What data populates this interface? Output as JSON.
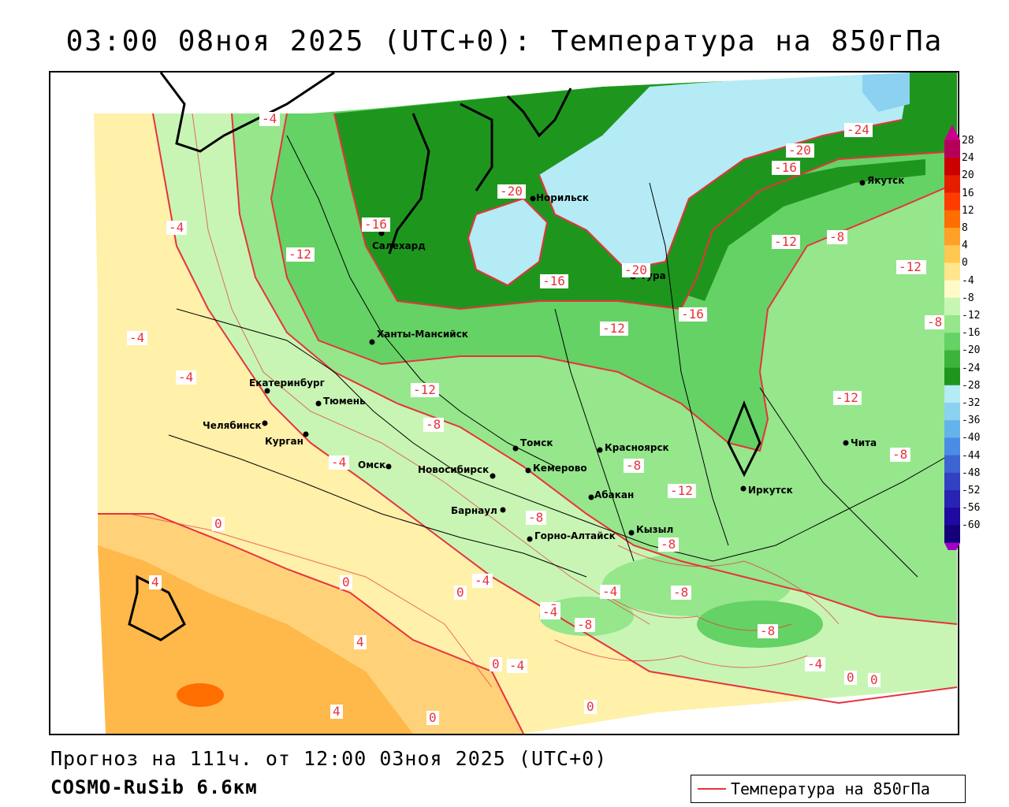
{
  "title": "03:00 08ноя 2025 (UTC+0): Температура на 850гПа",
  "footer": {
    "forecast": "Прогноз на 111ч. от 12:00 03ноя 2025 (UTC+0)",
    "model": "COSMO-RuSib 6.6км"
  },
  "legend": {
    "label": "Температура на 850гПа",
    "color": "#e8323c"
  },
  "colors": {
    "isoline": "#e8323c",
    "border": "#000000",
    "label_bg": "#ffffff"
  },
  "colorbar": {
    "ticks": [
      "28",
      "24",
      "20",
      "16",
      "12",
      "8",
      "4",
      "0",
      "-4",
      "-8",
      "-12",
      "-16",
      "-20",
      "-24",
      "-28",
      "-32",
      "-36",
      "-40",
      "-44",
      "-48",
      "-52",
      "-56",
      "-60"
    ],
    "colors": [
      "#b4005a",
      "#cd0000",
      "#e61e00",
      "#ff3c00",
      "#ff6e00",
      "#ffa028",
      "#ffc850",
      "#ffe68c",
      "#fffac8",
      "#c8f5b4",
      "#96e68c",
      "#64d264",
      "#3cb43c",
      "#1e961e",
      "#b4ebf5",
      "#8cd2f0",
      "#64b4eb",
      "#4b8ce6",
      "#3c64d2",
      "#3241c3",
      "#2823b4",
      "#1e0aa0",
      "#140078"
    ],
    "arrow_top_color": "#c8008c",
    "arrow_bottom_color": "#a000c8"
  },
  "cities": [
    {
      "name": "Салехард"
    },
    {
      "name": "Норильск"
    },
    {
      "name": "Тура"
    },
    {
      "name": "Якутск"
    },
    {
      "name": "Ханты-Мансийск"
    },
    {
      "name": "Екатеринбург"
    },
    {
      "name": "Тюмень"
    },
    {
      "name": "Челябинск"
    },
    {
      "name": "Курган"
    },
    {
      "name": "Омск"
    },
    {
      "name": "Новосибирск"
    },
    {
      "name": "Томск"
    },
    {
      "name": "Красноярск"
    },
    {
      "name": "Кемерово"
    },
    {
      "name": "Абакан"
    },
    {
      "name": "Барнаул"
    },
    {
      "name": "Горно-Алтайск"
    },
    {
      "name": "Кызыл"
    },
    {
      "name": "Иркутск"
    },
    {
      "name": "Чита"
    }
  ],
  "isoline_labels": [
    "-4",
    "-16",
    "-20",
    "-20",
    "-16",
    "-24",
    "-12",
    "-20",
    "-16",
    "-12",
    "-4",
    "-12",
    "-8",
    "-12",
    "-16",
    "-12",
    "-4",
    "-12",
    "-4",
    "-8",
    "-8",
    "-12",
    "-8",
    "-12",
    "-8",
    "0",
    "-8",
    "-4",
    "-4",
    "4",
    "0",
    "0",
    "-4",
    "-8",
    "-4",
    "-8",
    "-8",
    "-8",
    "-8",
    "4",
    "-4",
    "0",
    "-4",
    "0",
    "0",
    "0",
    "4",
    "0"
  ]
}
